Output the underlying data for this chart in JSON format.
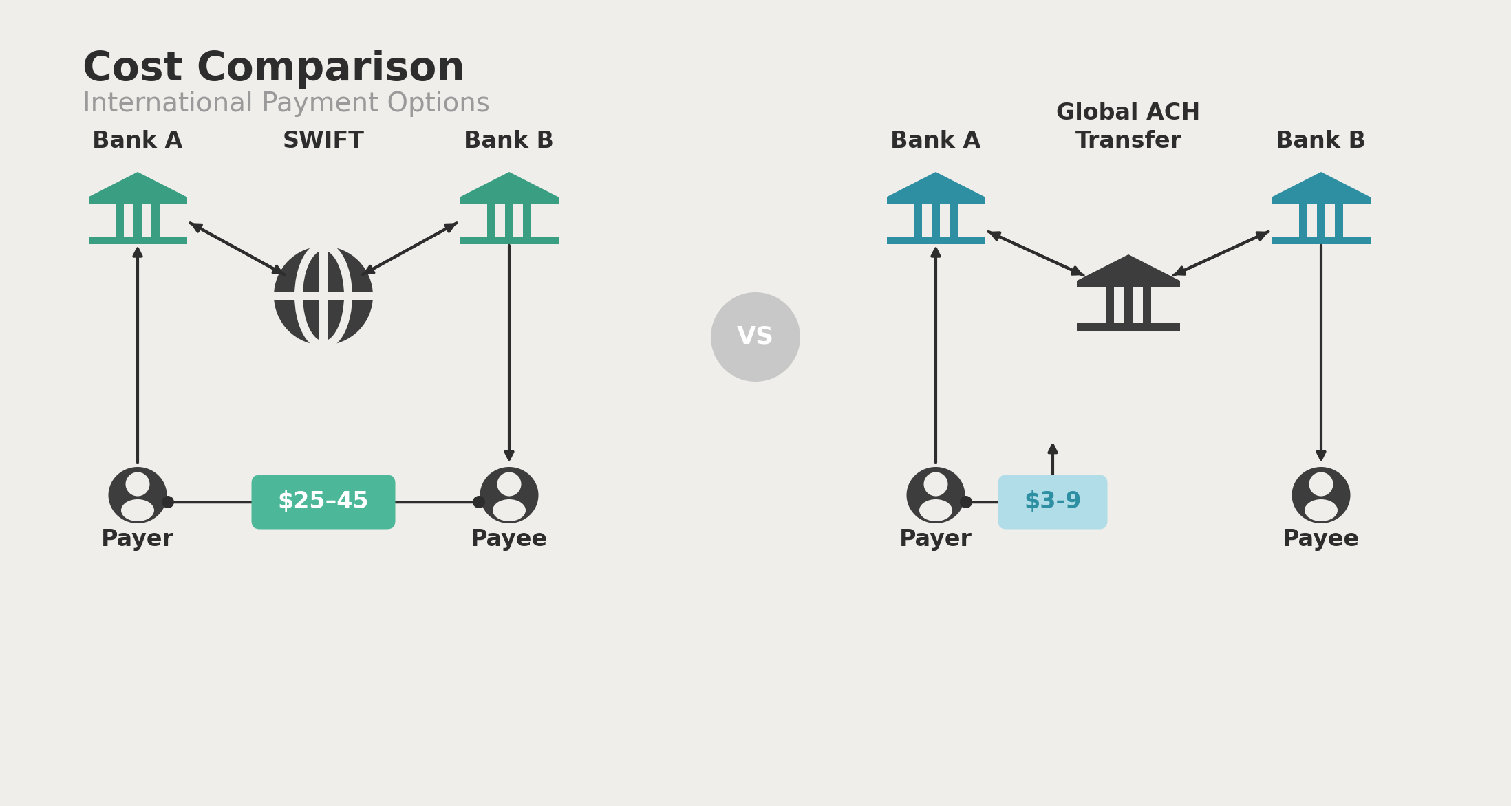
{
  "bg_color": "#f0eeea",
  "title": "Cost Comparison",
  "subtitle": "International Payment Options",
  "title_color": "#2d2d2d",
  "subtitle_color": "#9a9a9a",
  "bank_color_left": "#3a9e82",
  "bank_color_right": "#2e8fa3",
  "bank_color_ach": "#3d3d3d",
  "dark_color": "#2d2d2d",
  "person_color": "#3d3d3d",
  "person_inner": "#f0eeea",
  "arrow_color": "#2d2d2d",
  "vs_bg": "#c8c8c8",
  "vs_text": "#ffffff",
  "swift_fee_text": "$25–45",
  "swift_fee_bg": "#4db899",
  "swift_fee_text_color": "#ffffff",
  "ach_fee_text": "$3-9",
  "ach_fee_bg": "#b0dde8",
  "ach_fee_text_color": "#2e8fa3",
  "swift_label": "SWIFT",
  "ach_label": "Global ACH\nTransfer",
  "left_bank_a_label": "Bank A",
  "left_bank_b_label": "Bank B",
  "right_bank_a_label": "Bank A",
  "right_bank_b_label": "Bank B",
  "payer_label": "Payer",
  "payee_label": "Payee"
}
